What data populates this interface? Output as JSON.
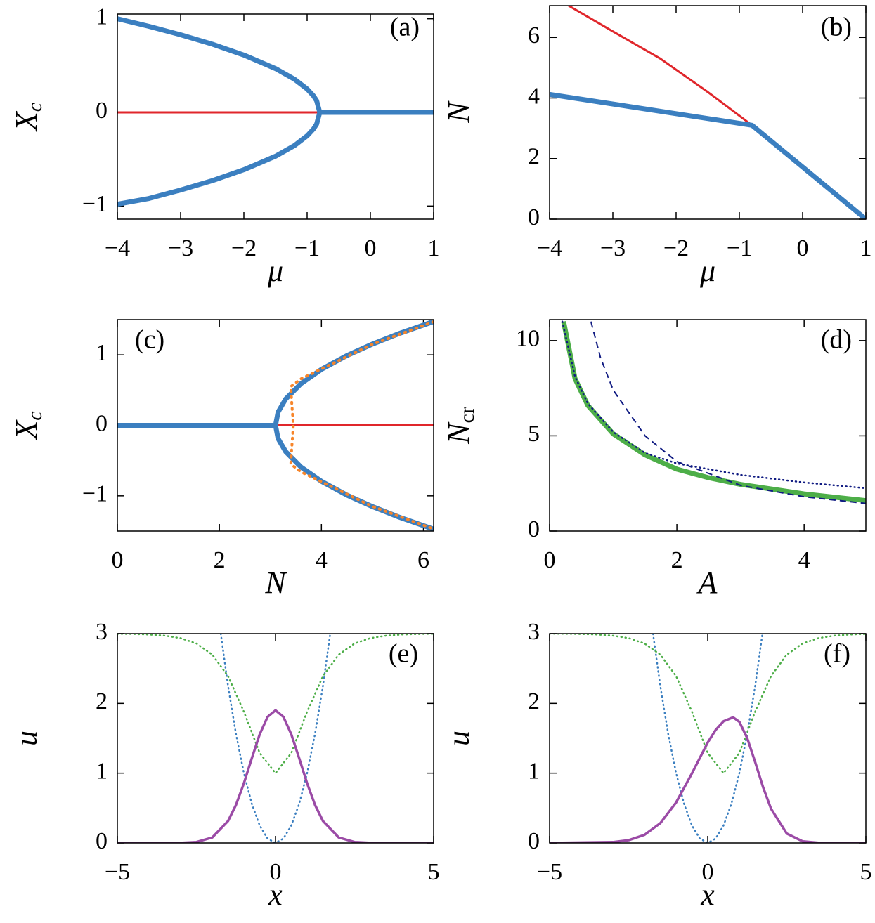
{
  "chart_data": [
    {
      "type": "line",
      "annotation": "(a)",
      "xlabel": "μ",
      "ylabel": "X",
      "ylabel_sub": "c",
      "xlim": [
        -4,
        1
      ],
      "ylim": [
        -1.14,
        1.05
      ],
      "xticks": [
        {
          "value": -4,
          "label": "−4"
        },
        {
          "value": -3,
          "label": "−3"
        },
        {
          "value": -2,
          "label": "−2"
        },
        {
          "value": -1,
          "label": "−1"
        },
        0,
        1
      ],
      "yticks": [
        {
          "value": -1,
          "label": "−1"
        },
        0,
        1
      ],
      "series": [
        {
          "color": "#e0262b",
          "linestyle": "thin",
          "x": [
            -4,
            -0.8
          ],
          "values": [
            0,
            0
          ]
        },
        {
          "color": "#3b7fc0",
          "linestyle": "thick",
          "x": [
            -4,
            -3.5,
            -3,
            -2.5,
            -2,
            -1.5,
            -1.2,
            -1,
            -0.9,
            -0.85,
            -0.8,
            -0.85,
            -0.9,
            -1,
            -1.2,
            -1.5,
            -2,
            -2.5,
            -3,
            -3.5,
            -4
          ],
          "values": [
            1,
            0.919,
            0.829,
            0.729,
            0.612,
            0.468,
            0.354,
            0.25,
            0.177,
            0.125,
            0,
            -0.125,
            -0.177,
            -0.25,
            -0.354,
            -0.468,
            -0.612,
            -0.729,
            -0.829,
            -0.919,
            -0.98
          ]
        },
        {
          "color": "#3b7fc0",
          "linestyle": "thick",
          "x": [
            -0.8,
            1
          ],
          "values": [
            0,
            0
          ]
        }
      ]
    },
    {
      "type": "line",
      "annotation": "(b)",
      "xlabel": "μ",
      "ylabel": "N",
      "xlim": [
        -4,
        1
      ],
      "ylim": [
        0,
        7.05
      ],
      "xticks": [
        {
          "value": -4,
          "label": "−4"
        },
        {
          "value": -3,
          "label": "−3"
        },
        {
          "value": -2,
          "label": "−2"
        },
        {
          "value": -1,
          "label": "−1"
        },
        0,
        1
      ],
      "yticks": [
        0,
        2,
        4,
        6
      ],
      "series": [
        {
          "color": "#e0262b",
          "linestyle": "thin",
          "x": [
            -3.7,
            -3,
            -2.25,
            -1.5,
            -0.8
          ],
          "values": [
            7.05,
            6.2,
            5.3,
            4.2,
            3.1
          ]
        },
        {
          "color": "#3b7fc0",
          "linestyle": "thick",
          "x": [
            -4,
            -0.8,
            1
          ],
          "values": [
            4.12,
            3.1,
            0
          ]
        }
      ]
    },
    {
      "type": "line",
      "annotation": "(c)",
      "xlabel": "N",
      "ylabel": "X",
      "ylabel_sub": "c",
      "xlim": [
        0,
        6.2
      ],
      "ylim": [
        -1.5,
        1.5
      ],
      "xticks": [
        0,
        2,
        4,
        6
      ],
      "yticks": [
        {
          "value": -1,
          "label": "−1"
        },
        0,
        1
      ],
      "series": [
        {
          "color": "#e0262b",
          "linestyle": "thin",
          "x": [
            3.1,
            6.2
          ],
          "values": [
            0,
            0
          ]
        },
        {
          "color": "#3b7fc0",
          "linestyle": "thick",
          "x": [
            0,
            3.1
          ],
          "values": [
            0,
            0
          ]
        },
        {
          "color": "#3b7fc0",
          "linestyle": "thick",
          "x": [
            6.2,
            5.5,
            5,
            4.5,
            4,
            3.6,
            3.3,
            3.15,
            3.1,
            3.15,
            3.3,
            3.6,
            4,
            4.5,
            5,
            5.5,
            6.2
          ],
          "values": [
            1.473,
            1.296,
            1.153,
            0.99,
            0.794,
            0.592,
            0.374,
            0.187,
            0,
            -0.187,
            -0.374,
            -0.592,
            -0.794,
            -0.99,
            -1.153,
            -1.296,
            -1.473
          ]
        },
        {
          "color": "#f7852a",
          "linestyle": "dotted-thick",
          "x": [
            6.2,
            5,
            4,
            3.6,
            3.4,
            3.42,
            3.45,
            3.42,
            3.4,
            3.6,
            4,
            5,
            6.2
          ],
          "values": [
            1.47,
            1.15,
            0.8,
            0.66,
            0.55,
            0.3,
            0,
            -0.3,
            -0.55,
            -0.66,
            -0.8,
            -1.15,
            -1.47
          ]
        }
      ]
    },
    {
      "type": "line",
      "annotation": "(d)",
      "xlabel": "A",
      "ylabel": "N",
      "ylabel_sub": "cr",
      "xlim": [
        0,
        4.97
      ],
      "ylim": [
        0,
        11.1
      ],
      "xticks": [
        0,
        2,
        4
      ],
      "yticks": [
        0,
        5,
        10
      ],
      "series": [
        {
          "color": "#4dae48",
          "linestyle": "thick",
          "x": [
            0.22,
            0.4,
            0.6,
            1,
            1.5,
            2,
            2.5,
            3,
            4,
            4.97
          ],
          "values": [
            11,
            8,
            6.6,
            5.1,
            4,
            3.25,
            2.8,
            2.45,
            1.95,
            1.6
          ]
        },
        {
          "color": "#101b82",
          "linestyle": "dotted",
          "x": [
            0.2,
            0.4,
            0.6,
            1,
            1.5,
            2,
            3,
            4,
            4.97
          ],
          "values": [
            11,
            8.1,
            6.7,
            5.2,
            4.1,
            3.55,
            2.95,
            2.55,
            2.25
          ]
        },
        {
          "color": "#101b82",
          "linestyle": "dashed",
          "x": [
            0.65,
            0.8,
            1,
            1.5,
            2,
            3,
            4,
            4.97
          ],
          "values": [
            11,
            9.1,
            7.4,
            5,
            3.65,
            2.4,
            1.8,
            1.45
          ]
        }
      ]
    },
    {
      "type": "line",
      "annotation": "(e)",
      "xlabel": "x",
      "ylabel": "u",
      "xlim": [
        -5,
        5
      ],
      "ylim": [
        0,
        3
      ],
      "xticks": [
        {
          "value": -5,
          "label": "−5"
        },
        0,
        5
      ],
      "yticks": [
        0,
        1,
        2,
        3
      ],
      "series": [
        {
          "color": "#3b7fc0",
          "linestyle": "dotted",
          "x": [
            -1.73,
            -1.5,
            -1.25,
            -1,
            -0.75,
            -0.5,
            -0.25,
            0,
            0.25,
            0.5,
            0.75,
            1,
            1.25,
            1.5,
            1.73
          ],
          "values": [
            3,
            2.25,
            1.563,
            1,
            0.563,
            0.25,
            0.063,
            0,
            0.063,
            0.25,
            0.563,
            1,
            1.563,
            2.25,
            3
          ]
        },
        {
          "color": "#4dae48",
          "linestyle": "dotted",
          "x": [
            -5,
            -4.5,
            -4,
            -3.5,
            -3,
            -2.5,
            -2,
            -1.5,
            -1,
            -0.5,
            0,
            0.5,
            1,
            1.5,
            2,
            2.5,
            3,
            3.5,
            4,
            4.5,
            5
          ],
          "values": [
            2.997,
            2.994,
            2.987,
            2.971,
            2.935,
            2.859,
            2.699,
            2.39,
            1.882,
            1.289,
            1,
            1.289,
            1.882,
            2.39,
            2.699,
            2.859,
            2.935,
            2.971,
            2.987,
            2.994,
            2.997
          ]
        },
        {
          "color": "#9b4ba6",
          "linestyle": "solid",
          "x": [
            -5,
            -4,
            -3,
            -2.5,
            -2,
            -1.5,
            -1.25,
            -1,
            -0.75,
            -0.5,
            -0.25,
            0,
            0.25,
            0.5,
            0.75,
            1,
            1.25,
            1.5,
            2,
            2.5,
            3,
            4,
            5
          ],
          "values": [
            0,
            0,
            0.001,
            0.013,
            0.078,
            0.314,
            0.544,
            0.854,
            1.212,
            1.556,
            1.807,
            1.9,
            1.807,
            1.556,
            1.212,
            0.854,
            0.544,
            0.314,
            0.078,
            0.013,
            0.001,
            0,
            0
          ]
        }
      ]
    },
    {
      "type": "line",
      "annotation": "(f)",
      "xlabel": "x",
      "ylabel": "u",
      "xlim": [
        -5,
        5
      ],
      "ylim": [
        0,
        3
      ],
      "xticks": [
        {
          "value": -5,
          "label": "−5"
        },
        0,
        5
      ],
      "yticks": [
        0,
        1,
        2,
        3
      ],
      "series": [
        {
          "color": "#3b7fc0",
          "linestyle": "dotted",
          "x": [
            -1.73,
            -1.5,
            -1.25,
            -1,
            -0.75,
            -0.5,
            -0.25,
            0,
            0.25,
            0.5,
            0.75,
            1,
            1.25,
            1.5,
            1.73
          ],
          "values": [
            3,
            2.25,
            1.563,
            1,
            0.563,
            0.25,
            0.063,
            0,
            0.063,
            0.25,
            0.563,
            1,
            1.563,
            2.25,
            3
          ]
        },
        {
          "color": "#4dae48",
          "linestyle": "dotted",
          "x": [
            -5,
            -4.5,
            -4,
            -3.5,
            -3,
            -2.5,
            -2,
            -1.5,
            -1,
            -0.5,
            0,
            0.5,
            1,
            1.5,
            2,
            2.5,
            3,
            3.5,
            4,
            4.5,
            5
          ],
          "values": [
            2.999,
            2.997,
            2.994,
            2.987,
            2.971,
            2.935,
            2.859,
            2.699,
            2.39,
            1.882,
            1.289,
            1,
            1.289,
            1.882,
            2.39,
            2.699,
            2.859,
            2.935,
            2.971,
            2.987,
            2.994
          ]
        },
        {
          "color": "#9b4ba6",
          "linestyle": "solid",
          "x": [
            -5,
            -3,
            -2.5,
            -2,
            -1.5,
            -1,
            -0.5,
            0,
            0.25,
            0.5,
            0.8,
            1,
            1.25,
            1.5,
            1.75,
            2,
            2.5,
            3,
            3.5,
            5
          ],
          "values": [
            0,
            0.012,
            0.04,
            0.116,
            0.283,
            0.58,
            0.996,
            1.439,
            1.619,
            1.744,
            1.8,
            1.736,
            1.5,
            1.158,
            0.799,
            0.492,
            0.134,
            0.023,
            0.003,
            0
          ]
        }
      ]
    }
  ]
}
